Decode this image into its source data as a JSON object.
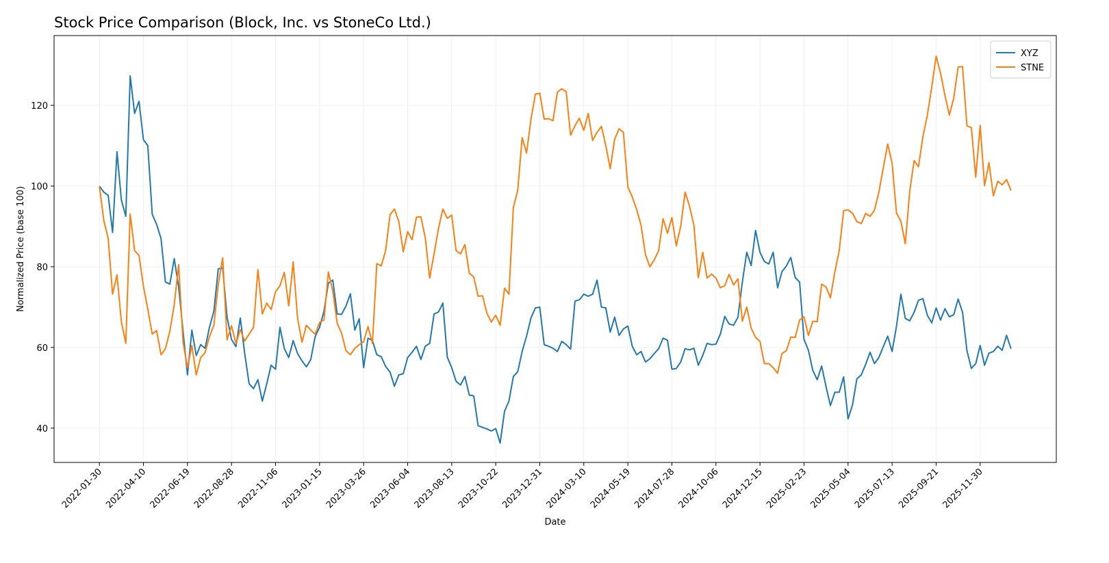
{
  "chart_data": {
    "type": "line",
    "title": "Stock Price Comparison (Block, Inc. vs StoneCo Ltd.)",
    "x_label": "Date",
    "y_label": "Normalized Price (base 100)",
    "x": [
      "2022-01-30",
      "2022-02-06",
      "2022-02-13",
      "2022-02-20",
      "2022-02-27",
      "2022-03-06",
      "2022-03-13",
      "2022-03-20",
      "2022-03-27",
      "2022-04-03",
      "2022-04-10",
      "2022-04-17",
      "2022-04-24",
      "2022-05-01",
      "2022-05-08",
      "2022-05-15",
      "2022-05-22",
      "2022-05-29",
      "2022-06-05",
      "2022-06-12",
      "2022-06-19",
      "2022-06-26",
      "2022-07-03",
      "2022-07-10",
      "2022-07-17",
      "2022-07-24",
      "2022-07-31",
      "2022-08-07",
      "2022-08-14",
      "2022-08-21",
      "2022-08-28",
      "2022-09-04",
      "2022-09-11",
      "2022-09-18",
      "2022-09-25",
      "2022-10-02",
      "2022-10-09",
      "2022-10-16",
      "2022-10-23",
      "2022-10-30",
      "2022-11-06",
      "2022-11-13",
      "2022-11-20",
      "2022-11-27",
      "2022-12-04",
      "2022-12-11",
      "2022-12-18",
      "2022-12-25",
      "2023-01-01",
      "2023-01-08",
      "2023-01-15",
      "2023-01-22",
      "2023-01-29",
      "2023-02-05",
      "2023-02-12",
      "2023-02-19",
      "2023-02-26",
      "2023-03-05",
      "2023-03-12",
      "2023-03-19",
      "2023-03-26",
      "2023-04-02",
      "2023-04-09",
      "2023-04-16",
      "2023-04-23",
      "2023-04-30",
      "2023-05-07",
      "2023-05-14",
      "2023-05-21",
      "2023-05-28",
      "2023-06-04",
      "2023-06-11",
      "2023-06-18",
      "2023-06-25",
      "2023-07-02",
      "2023-07-09",
      "2023-07-16",
      "2023-07-23",
      "2023-07-30",
      "2023-08-06",
      "2023-08-13",
      "2023-08-20",
      "2023-08-27",
      "2023-09-03",
      "2023-09-10",
      "2023-09-17",
      "2023-09-24",
      "2023-10-01",
      "2023-10-08",
      "2023-10-15",
      "2023-10-22",
      "2023-10-29",
      "2023-11-05",
      "2023-11-12",
      "2023-11-19",
      "2023-11-26",
      "2023-12-03",
      "2023-12-10",
      "2023-12-17",
      "2023-12-24",
      "2023-12-31",
      "2024-01-07",
      "2024-01-14",
      "2024-01-21",
      "2024-01-28",
      "2024-02-04",
      "2024-02-11",
      "2024-02-18",
      "2024-02-25",
      "2024-03-03",
      "2024-03-10",
      "2024-03-17",
      "2024-03-24",
      "2024-03-31",
      "2024-04-07",
      "2024-04-14",
      "2024-04-21",
      "2024-04-28",
      "2024-05-05",
      "2024-05-12",
      "2024-05-19",
      "2024-05-26",
      "2024-06-02",
      "2024-06-09",
      "2024-06-16",
      "2024-06-23",
      "2024-06-30",
      "2024-07-07",
      "2024-07-14",
      "2024-07-21",
      "2024-07-28",
      "2024-08-04",
      "2024-08-11",
      "2024-08-18",
      "2024-08-25",
      "2024-09-01",
      "2024-09-08",
      "2024-09-15",
      "2024-09-22",
      "2024-09-29",
      "2024-10-06",
      "2024-10-13",
      "2024-10-20",
      "2024-10-27",
      "2024-11-03",
      "2024-11-10",
      "2024-11-17",
      "2024-11-24",
      "2024-12-01",
      "2024-12-08",
      "2024-12-15",
      "2024-12-22",
      "2024-12-29",
      "2025-01-05",
      "2025-01-12",
      "2025-01-19",
      "2025-01-26",
      "2025-02-02",
      "2025-02-09",
      "2025-02-16",
      "2025-02-23",
      "2025-03-02",
      "2025-03-09",
      "2025-03-16",
      "2025-03-23",
      "2025-03-30",
      "2025-04-06",
      "2025-04-13",
      "2025-04-20",
      "2025-04-27",
      "2025-05-04",
      "2025-05-11",
      "2025-05-18",
      "2025-05-25",
      "2025-06-01",
      "2025-06-08",
      "2025-06-15",
      "2025-06-22",
      "2025-06-29",
      "2025-07-06",
      "2025-07-13",
      "2025-07-20",
      "2025-07-27",
      "2025-08-03",
      "2025-08-10",
      "2025-08-17",
      "2025-08-24",
      "2025-08-31",
      "2025-09-07",
      "2025-09-14",
      "2025-09-21",
      "2025-09-28",
      "2025-10-05",
      "2025-10-12",
      "2025-10-19",
      "2025-10-26",
      "2025-11-02",
      "2025-11-09",
      "2025-11-16",
      "2025-11-23",
      "2025-11-30",
      "2025-12-07",
      "2025-12-14",
      "2025-12-21",
      "2025-12-28",
      "2026-01-04",
      "2026-01-11",
      "2026-01-18"
    ],
    "series": [
      {
        "name": "XYZ",
        "color": "#1f77b4",
        "values": [
          100,
          98.5,
          97.7,
          88.5,
          108.5,
          96.5,
          92.5,
          127.3,
          118,
          121,
          111.5,
          110,
          93,
          90.5,
          87,
          76.2,
          75.7,
          82,
          75,
          64,
          53.2,
          64.3,
          58,
          60.7,
          59.8,
          65,
          69,
          79.5,
          79.7,
          67.5,
          62,
          60.2,
          67.3,
          58.5,
          51,
          49.8,
          52,
          46.7,
          51,
          55.6,
          54.6,
          65,
          59.7,
          57.5,
          61.7,
          58.5,
          56.7,
          55.2,
          57,
          62.7,
          65,
          69,
          76,
          76.7,
          68.3,
          68.2,
          70.3,
          73.3,
          64.3,
          67.1,
          55,
          62.3,
          61.7,
          58.2,
          57.7,
          55.3,
          53.9,
          50.4,
          53.2,
          53.5,
          57.5,
          58.8,
          60.3,
          57,
          60.3,
          61,
          68.3,
          68.8,
          71,
          57.6,
          55,
          51.6,
          50.7,
          52.8,
          48.2,
          48,
          40.6,
          40.2,
          39.8,
          39.3,
          39.9,
          36.3,
          44.2,
          46.7,
          52.8,
          54,
          59,
          62.8,
          67.3,
          69.8,
          70,
          60.7,
          60.3,
          59.8,
          59,
          61.5,
          60.7,
          59.6,
          71.5,
          71.8,
          73.2,
          72.7,
          73.2,
          76.7,
          70,
          69.8,
          63.8,
          67.5,
          63,
          64.6,
          65.3,
          60.3,
          58.2,
          59,
          56.4,
          57.2,
          58.5,
          59.7,
          62.3,
          61.8,
          54.6,
          54.8,
          56.4,
          59.7,
          59.4,
          59.8,
          55.6,
          58,
          61,
          60.7,
          60.8,
          63.3,
          67.7,
          65.8,
          65.5,
          67.5,
          76.2,
          83.6,
          80.3,
          89,
          83.6,
          81.3,
          80.7,
          83.6,
          74.8,
          78.8,
          80.2,
          82.3,
          77.3,
          76.2,
          62,
          59.3,
          54.3,
          52,
          55.4,
          50.3,
          45.6,
          48.9,
          48.9,
          52.7,
          42.3,
          45.7,
          52.2,
          53.2,
          55.8,
          58.8,
          56,
          57.5,
          60.2,
          62.8,
          59,
          65.3,
          73.2,
          67.2,
          66.6,
          68.7,
          71.7,
          72.1,
          68,
          66.1,
          69.8,
          66.8,
          69.6,
          67.6,
          68.1,
          72,
          68.7,
          59.2,
          54.8,
          56,
          60.5,
          55.6,
          58.6,
          59,
          60.3,
          59.3,
          63,
          59.7
        ]
      },
      {
        "name": "STNE",
        "color": "#ff7f0e",
        "values": [
          100,
          91.5,
          87,
          73.2,
          78,
          66.3,
          61,
          93.1,
          84,
          82.8,
          75.2,
          69.5,
          63.3,
          64.2,
          58.2,
          59.7,
          64,
          70.6,
          80.5,
          61.3,
          55,
          60.5,
          53.2,
          57.5,
          58.7,
          62.7,
          65.5,
          75.7,
          82.2,
          61.9,
          65.4,
          61,
          64.4,
          61.6,
          63.3,
          65,
          79.3,
          68.3,
          71,
          69.4,
          73.8,
          75.3,
          78.6,
          70.3,
          81.2,
          67.3,
          61.3,
          65.5,
          64.3,
          63.3,
          66.2,
          66.8,
          78.7,
          74,
          66,
          63.5,
          59.2,
          58.2,
          59.8,
          60.7,
          61.4,
          65.2,
          61,
          80.8,
          80.2,
          84,
          92.9,
          94.3,
          91.2,
          83.7,
          88.7,
          86.7,
          92.3,
          92.4,
          87.2,
          77.2,
          83.2,
          89.5,
          94.3,
          92,
          92.8,
          84,
          83.2,
          85.5,
          78.4,
          77.5,
          72.7,
          72.8,
          68.5,
          66.3,
          68,
          65.5,
          74.7,
          73.2,
          94.7,
          99,
          112,
          108.2,
          116.5,
          122.8,
          123,
          116.6,
          116.7,
          116.2,
          123.3,
          124.1,
          123.4,
          112.6,
          115,
          116.8,
          113.8,
          118,
          111.3,
          113.3,
          114.8,
          110,
          104.3,
          111.6,
          114.2,
          113.3,
          99.8,
          97.3,
          94.2,
          90.3,
          83,
          80,
          81.7,
          84,
          91.9,
          88.3,
          92.2,
          85.2,
          90,
          98.5,
          95,
          90.3,
          77.3,
          83.6,
          77.2,
          78.2,
          77.2,
          74.8,
          75.3,
          78.1,
          75.5,
          77,
          66.5,
          70,
          64.8,
          62.5,
          61.5,
          56,
          56,
          55,
          53.6,
          58.5,
          59.2,
          62.6,
          62.5,
          66.8,
          67.6,
          63,
          66.5,
          66.4,
          75.7,
          75,
          72.3,
          78.7,
          84,
          93.9,
          94.1,
          93.3,
          91.2,
          90.7,
          93.2,
          92.5,
          94,
          98.5,
          104.5,
          110.4,
          105.7,
          93.3,
          91.3,
          85.7,
          98.7,
          106.3,
          104.8,
          112.3,
          117.5,
          124.5,
          132.2,
          128,
          122.5,
          117.6,
          121.8,
          129.5,
          129.6,
          114.9,
          114.5,
          102.2,
          115,
          100.1,
          105.8,
          97.6,
          101.2,
          100.3,
          101.6,
          98.9
        ]
      }
    ],
    "xlim": [
      "2021-11-19",
      "2026-03-31"
    ],
    "xticks": [
      "2022-01-30",
      "2022-04-10",
      "2022-06-19",
      "2022-08-28",
      "2022-11-06",
      "2023-01-15",
      "2023-03-26",
      "2023-06-04",
      "2023-08-13",
      "2023-10-22",
      "2023-12-31",
      "2024-03-10",
      "2024-05-19",
      "2024-07-28",
      "2024-10-06",
      "2024-12-15",
      "2025-02-23",
      "2025-05-04",
      "2025-07-13",
      "2025-09-21",
      "2025-11-30"
    ],
    "ylim": [
      31.5,
      137.3
    ],
    "yticks": [
      40,
      60,
      80,
      100,
      120
    ],
    "grid": true,
    "legend": "upper right"
  }
}
